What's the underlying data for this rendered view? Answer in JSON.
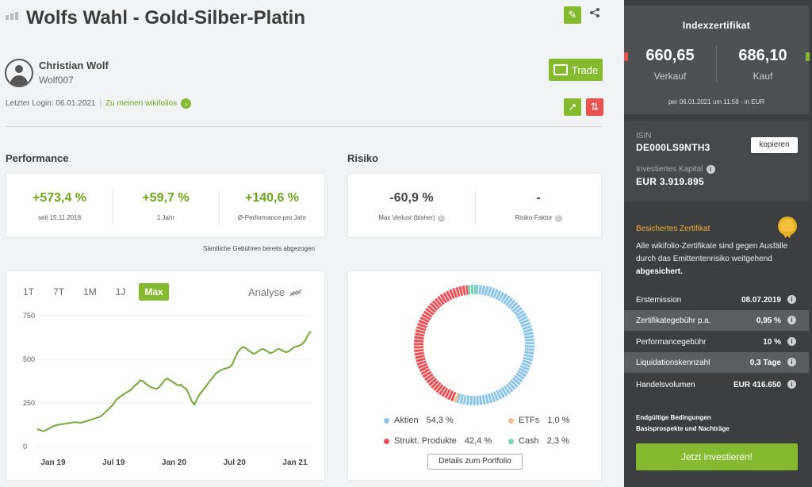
{
  "header": {
    "title": "Wolfs Wahl - Gold-Silber-Platin"
  },
  "author": {
    "name": "Christian Wolf",
    "username": "Wolf007",
    "last_login": "Letzter Login: 06.01.2021",
    "my_wikifolios_link": "Zu meinen wikifolios"
  },
  "trade_button": "Trade",
  "performance": {
    "title": "Performance",
    "kpis": [
      {
        "value": "+573,4 %",
        "label": "seit 15.11.2018"
      },
      {
        "value": "+59,7 %",
        "label": "1 Jahr"
      },
      {
        "value": "+140,6 %",
        "label": "Ø-Performance pro Jahr"
      }
    ],
    "fees_note": "Sämtliche Gebühren bereits abgezogen"
  },
  "risk": {
    "title": "Risiko",
    "kpis": [
      {
        "value": "-60,9 %",
        "label": "Max Verlust (bisher)"
      },
      {
        "value": "-",
        "label": "Risiko-Faktor"
      }
    ]
  },
  "chart_tabs": [
    "1T",
    "7T",
    "1M",
    "1J",
    "Max"
  ],
  "chart_active_tab": "Max",
  "analyse_label": "Analyse",
  "colors": {
    "accent_green": "#85b92f",
    "aktien": "#8cc5ec",
    "strukt": "#ec4f55",
    "etfs": "#f5c08c",
    "cash": "#78d6b0"
  },
  "chart_data": [
    {
      "type": "line",
      "x_ticks": [
        "Jan 19",
        "Jul 19",
        "Jan 20",
        "Jul 20",
        "Jan 21"
      ],
      "y_ticks": [
        0,
        250,
        500,
        750
      ],
      "ylim": [
        0,
        750
      ],
      "x": [
        0,
        0.25,
        0.5,
        0.75,
        1.0,
        1.25,
        1.5,
        1.75,
        2.0,
        2.25,
        2.5,
        2.75,
        3.0,
        3.25,
        3.5,
        3.75,
        4.0,
        4.25,
        4.5,
        4.75,
        5.0,
        5.25,
        5.5,
        5.75,
        6.0,
        6.25,
        6.5,
        6.75,
        7.0,
        7.25,
        7.5,
        7.75,
        8.0,
        8.25,
        8.5,
        8.75,
        9.0,
        9.25,
        9.5,
        9.75,
        10.0,
        10.25,
        10.5,
        10.75,
        11.0,
        11.25,
        11.5,
        11.75,
        12.0,
        12.25,
        12.5,
        12.75,
        13.0,
        13.25,
        13.5,
        13.75,
        14.0,
        14.25,
        14.5,
        14.75,
        15.0,
        15.25,
        15.5,
        15.75,
        16.0,
        16.25,
        16.5,
        16.75,
        17.0,
        17.25,
        17.5,
        17.75,
        18.0,
        18.25,
        18.5,
        18.75,
        19.0,
        19.25,
        19.5,
        19.75,
        20.0,
        20.25,
        20.5,
        20.75,
        21.0,
        21.25,
        21.5,
        21.75,
        22.0,
        22.25,
        22.5,
        22.75,
        23.0,
        23.25,
        23.5,
        23.75,
        24.0,
        24.25,
        24.5,
        24.75,
        25.0,
        25.25
      ],
      "values": [
        100,
        95,
        88,
        92,
        100,
        110,
        118,
        122,
        125,
        128,
        130,
        133,
        135,
        138,
        140,
        138,
        135,
        140,
        145,
        150,
        155,
        160,
        165,
        170,
        180,
        195,
        210,
        225,
        240,
        265,
        280,
        290,
        300,
        310,
        320,
        330,
        350,
        360,
        380,
        375,
        360,
        350,
        340,
        335,
        330,
        340,
        360,
        380,
        390,
        380,
        370,
        360,
        350,
        355,
        340,
        330,
        300,
        260,
        240,
        275,
        300,
        320,
        340,
        360,
        380,
        400,
        420,
        430,
        440,
        445,
        450,
        455,
        470,
        510,
        540,
        560,
        570,
        565,
        550,
        540,
        530,
        540,
        550,
        560,
        555,
        545,
        535,
        540,
        550,
        560,
        555,
        545,
        540,
        548,
        560,
        570,
        575,
        580,
        590,
        610,
        640,
        660
      ],
      "line_color": "#76a83a"
    },
    {
      "type": "pie",
      "donut": true,
      "slices": [
        {
          "label": "Aktien",
          "value": 54.3,
          "display": "54,3 %"
        },
        {
          "label": "ETFs",
          "value": 1.0,
          "display": "1,0 %"
        },
        {
          "label": "Strukt. Produkte",
          "value": 42.4,
          "display": "42,4 %"
        },
        {
          "label": "Cash",
          "value": 2.3,
          "display": "2,3 %"
        }
      ]
    }
  ],
  "portfolio_button": "Details zum Portfolio",
  "certificate": {
    "title": "Indexzertifikat",
    "sell_price": "660,65",
    "sell_label": "Verkauf",
    "buy_price": "686,10",
    "buy_label": "Kauf",
    "timestamp": "per 06.01.2021 um 11:58 - in EUR",
    "isin_label": "ISIN",
    "isin": "DE000LS9NTH3",
    "copy_button": "kopieren",
    "capital_label": "Investiertes Kapital",
    "capital": "EUR 3.919.895",
    "secured_title": "Besichertes Zertifikat",
    "secured_text_pre": "Alle wikifolio-Zertifikate sind gegen Ausfälle durch das Emittentenrisiko weitgehend ",
    "secured_text_bold": "abgesichert.",
    "details": [
      {
        "label": "Erstemission",
        "value": "08.07.2019"
      },
      {
        "label": "Zertifikategebühr p.a.",
        "value": "0,95 %"
      },
      {
        "label": "Performancegebühr",
        "value": "10 %"
      },
      {
        "label": "Liquidationskennzahl",
        "value": "0,3 Tage"
      },
      {
        "label": "Handelsvolumen",
        "value": "EUR 416.650"
      }
    ],
    "link_terms": "Endgültige Bedingungen",
    "link_prospect": "Basisprospekte und Nachträge",
    "invest_button": "Jetzt investieren!"
  }
}
